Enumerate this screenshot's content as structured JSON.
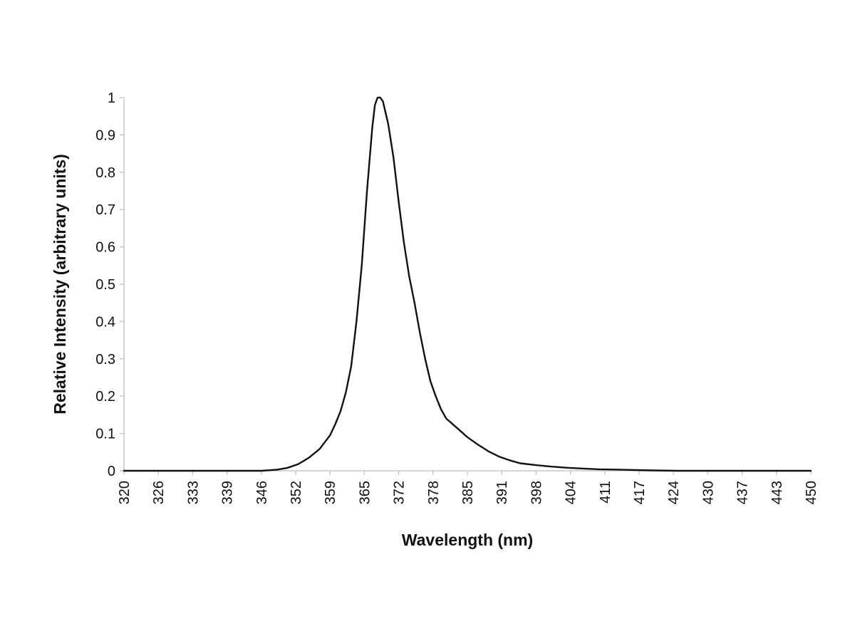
{
  "chart_data": {
    "type": "line",
    "title": "",
    "xlabel": "Wavelength (nm)",
    "ylabel": "Relative Intensity (arbitrary units)",
    "xlim": [
      320,
      450
    ],
    "ylim": [
      0,
      1
    ],
    "grid": false,
    "legend": "none",
    "x_tick_labels": [
      "320",
      "326",
      "333",
      "339",
      "346",
      "352",
      "359",
      "365",
      "372",
      "378",
      "385",
      "391",
      "398",
      "404",
      "411",
      "417",
      "424",
      "430",
      "437",
      "443",
      "450"
    ],
    "y_tick_labels": [
      "0",
      "0.1",
      "0.2",
      "0.3",
      "0.4",
      "0.5",
      "0.6",
      "0.7",
      "0.8",
      "0.9",
      "1"
    ],
    "series": [
      {
        "line_color": "#111111",
        "x": [
          320,
          330,
          340,
          346,
          349,
          351,
          353,
          355,
          357,
          359,
          360,
          361,
          362,
          363,
          364,
          365,
          366,
          367,
          367.5,
          368,
          368.5,
          369,
          370,
          371,
          372,
          373,
          374,
          375,
          376,
          377,
          378,
          379,
          380,
          381,
          383,
          385,
          387,
          389,
          391,
          393,
          395,
          398,
          401,
          404,
          407,
          410,
          414,
          417,
          420,
          425,
          435,
          450
        ],
        "y": [
          0,
          0,
          0,
          0,
          0.003,
          0.008,
          0.018,
          0.035,
          0.058,
          0.095,
          0.125,
          0.16,
          0.21,
          0.28,
          0.4,
          0.55,
          0.75,
          0.92,
          0.98,
          1.0,
          1.0,
          0.99,
          0.93,
          0.84,
          0.72,
          0.61,
          0.52,
          0.45,
          0.37,
          0.3,
          0.24,
          0.2,
          0.165,
          0.14,
          0.115,
          0.09,
          0.07,
          0.052,
          0.038,
          0.028,
          0.02,
          0.015,
          0.011,
          0.008,
          0.006,
          0.004,
          0.003,
          0.002,
          0.001,
          0,
          0,
          0
        ]
      }
    ]
  }
}
